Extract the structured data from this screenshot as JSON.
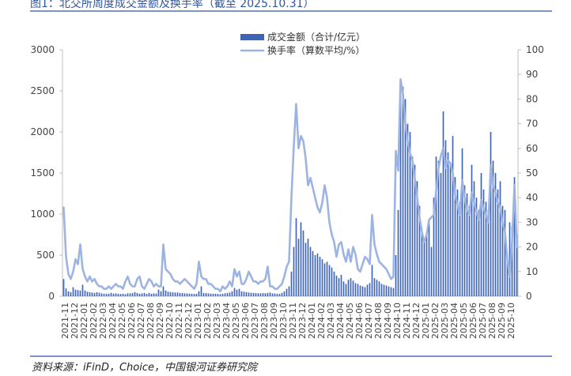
{
  "title": "图1：北交所周度成交金额及换手率（截至 2025.10.31）",
  "source": "资料来源：iFinD，Choice，中国银河证券研究院",
  "chart_data": {
    "type": "bar+line",
    "left_axis": {
      "ylim": [
        0,
        3000
      ],
      "ticks": [
        "0",
        "500",
        "1000",
        "1500",
        "2000",
        "2500",
        "3000"
      ]
    },
    "right_axis": {
      "ylim": [
        0,
        100
      ],
      "ticks": [
        "0",
        "10",
        "20",
        "30",
        "40",
        "50",
        "60",
        "70",
        "80",
        "90",
        "100"
      ]
    },
    "x_tick_labels": [
      "2021-11",
      "2021-12",
      "2022-01",
      "2022-02",
      "2022-03",
      "2022-04",
      "2022-05",
      "2022-06",
      "2022-07",
      "2022-08",
      "2022-09",
      "2022-10",
      "2022-11",
      "2022-12",
      "2023-01",
      "2023-02",
      "2023-03",
      "2023-04",
      "2023-05",
      "2023-06",
      "2023-07",
      "2023-08",
      "2023-09",
      "2023-10",
      "2023-11",
      "2023-12",
      "2024-01",
      "2024-02",
      "2024-03",
      "2024-04",
      "2024-05",
      "2024-06",
      "2024-07",
      "2024-08",
      "2024-09",
      "2024-10",
      "2024-11",
      "2024-12",
      "2025-01",
      "2025-02",
      "2025-03",
      "2025-04",
      "2025-05",
      "2025-06",
      "2025-07",
      "2025-08",
      "2025-09",
      "2025-10"
    ],
    "legend": [
      "成交金额（合计/亿元）",
      "换手率（算数平均/%）"
    ],
    "colors": {
      "bar": "#3f64b4",
      "line": "#9db4e3",
      "axis": "#bfbfbf"
    },
    "monthly": [
      {
        "month": "2021-11",
        "amount": [
          210,
          95,
          60,
          50
        ],
        "turnover": [
          36,
          16,
          9,
          7
        ]
      },
      {
        "month": "2021-12",
        "amount": [
          110,
          80,
          75,
          70
        ],
        "turnover": [
          10,
          15,
          13,
          21
        ]
      },
      {
        "month": "2022-01",
        "amount": [
          140,
          70,
          55,
          50
        ],
        "turnover": [
          11,
          8,
          6,
          8
        ]
      },
      {
        "month": "2022-02",
        "amount": [
          45,
          40,
          48,
          42
        ],
        "turnover": [
          6,
          7,
          5,
          4
        ]
      },
      {
        "month": "2022-03",
        "amount": [
          35,
          30,
          28,
          30
        ],
        "turnover": [
          4,
          3,
          3,
          4
        ]
      },
      {
        "month": "2022-04",
        "amount": [
          40,
          32,
          35,
          30
        ],
        "turnover": [
          3,
          4,
          5,
          4
        ]
      },
      {
        "month": "2022-05",
        "amount": [
          28,
          30,
          25,
          35
        ],
        "turnover": [
          4,
          3,
          6,
          8
        ]
      },
      {
        "month": "2022-06",
        "amount": [
          35,
          38,
          50,
          40
        ],
        "turnover": [
          5,
          4,
          4,
          7
        ]
      },
      {
        "month": "2022-07",
        "amount": [
          30,
          35,
          40,
          28
        ],
        "turnover": [
          8,
          4,
          3,
          5
        ]
      },
      {
        "month": "2022-08",
        "amount": [
          40,
          30,
          35,
          32
        ],
        "turnover": [
          7,
          6,
          4,
          5
        ]
      },
      {
        "month": "2022-09",
        "amount": [
          80,
          60,
          120,
          70
        ],
        "turnover": [
          4,
          4,
          21,
          11
        ]
      },
      {
        "month": "2022-10",
        "amount": [
          55,
          50,
          48,
          45
        ],
        "turnover": [
          10,
          9,
          7,
          6
        ]
      },
      {
        "month": "2022-11",
        "amount": [
          45,
          40,
          38,
          35
        ],
        "turnover": [
          6,
          5,
          6,
          7
        ]
      },
      {
        "month": "2022-12",
        "amount": [
          35,
          32,
          30,
          28
        ],
        "turnover": [
          6,
          5,
          4,
          3
        ]
      },
      {
        "month": "2023-01",
        "amount": [
          30,
          60,
          120,
          40
        ],
        "turnover": [
          5,
          14,
          8,
          7
        ]
      },
      {
        "month": "2023-02",
        "amount": [
          38,
          35,
          32,
          30
        ],
        "turnover": [
          7,
          5,
          5,
          4
        ]
      },
      {
        "month": "2023-03",
        "amount": [
          30,
          28,
          25,
          30
        ],
        "turnover": [
          3,
          3,
          2,
          4
        ]
      },
      {
        "month": "2023-04",
        "amount": [
          35,
          40,
          45,
          60
        ],
        "turnover": [
          3,
          4,
          6,
          4
        ]
      },
      {
        "month": "2023-05",
        "amount": [
          100,
          80,
          90,
          60
        ],
        "turnover": [
          11,
          8,
          10,
          5
        ]
      },
      {
        "month": "2023-06",
        "amount": [
          55,
          50,
          45,
          42
        ],
        "turnover": [
          5,
          7,
          10,
          8
        ]
      },
      {
        "month": "2023-07",
        "amount": [
          40,
          38,
          36,
          35
        ],
        "turnover": [
          6,
          6,
          5,
          6
        ]
      },
      {
        "month": "2023-08",
        "amount": [
          38,
          36,
          40,
          45
        ],
        "turnover": [
          6,
          7,
          12,
          4
        ]
      },
      {
        "month": "2023-09",
        "amount": [
          35,
          33,
          30,
          28
        ],
        "turnover": [
          4,
          3,
          3,
          4
        ]
      },
      {
        "month": "2023-10",
        "amount": [
          40,
          60,
          90,
          120
        ],
        "turnover": [
          5,
          8,
          12,
          14
        ]
      },
      {
        "month": "2023-11",
        "amount": [
          300,
          600,
          950,
          700
        ],
        "turnover": [
          40,
          61,
          78,
          60
        ]
      },
      {
        "month": "2023-12",
        "amount": [
          900,
          800,
          650,
          700
        ],
        "turnover": [
          65,
          63,
          56,
          45
        ]
      },
      {
        "month": "2024-01",
        "amount": [
          600,
          550,
          500,
          520
        ],
        "turnover": [
          48,
          44,
          40,
          36
        ]
      },
      {
        "month": "2024-02",
        "amount": [
          480,
          450,
          400,
          420
        ],
        "turnover": [
          34,
          38,
          45,
          40
        ]
      },
      {
        "month": "2024-03",
        "amount": [
          380,
          350,
          300,
          250
        ],
        "turnover": [
          30,
          25,
          22,
          16
        ]
      },
      {
        "month": "2024-04",
        "amount": [
          220,
          260,
          180,
          150
        ],
        "turnover": [
          21,
          22,
          17,
          14
        ]
      },
      {
        "month": "2024-05",
        "amount": [
          200,
          220,
          190,
          160
        ],
        "turnover": [
          19,
          14,
          20,
          17
        ]
      },
      {
        "month": "2024-06",
        "amount": [
          150,
          130,
          120,
          110
        ],
        "turnover": [
          11,
          10,
          13,
          16
        ]
      },
      {
        "month": "2024-07",
        "amount": [
          140,
          160,
          380,
          220
        ],
        "turnover": [
          15,
          13,
          33,
          21
        ]
      },
      {
        "month": "2024-08",
        "amount": [
          200,
          180,
          150,
          140
        ],
        "turnover": [
          17,
          14,
          13,
          12
        ]
      },
      {
        "month": "2024-09",
        "amount": [
          130,
          120,
          110,
          100
        ],
        "turnover": [
          11,
          9,
          7,
          8
        ]
      },
      {
        "month": "2024-10",
        "amount": [
          500,
          1050,
          2650,
          2550
        ],
        "turnover": [
          59,
          51,
          88,
          82
        ]
      },
      {
        "month": "2024-11",
        "amount": [
          2400,
          2100,
          2000,
          1700
        ],
        "turnover": [
          70,
          63,
          58,
          55
        ]
      },
      {
        "month": "2024-12",
        "amount": [
          1600,
          1400,
          1100,
          800
        ],
        "turnover": [
          48,
          40,
          32,
          26
        ]
      },
      {
        "month": "2025-01",
        "amount": [
          700,
          750,
          900,
          600
        ],
        "turnover": [
          22,
          25,
          31,
          32
        ]
      },
      {
        "month": "2025-02",
        "amount": [
          1200,
          1700,
          1650,
          1500
        ],
        "turnover": [
          33,
          43,
          52,
          57
        ]
      },
      {
        "month": "2025-03",
        "amount": [
          2250,
          1900,
          1750,
          1600
        ],
        "turnover": [
          60,
          52,
          55,
          54
        ]
      },
      {
        "month": "2025-04",
        "amount": [
          1950,
          1450,
          1300,
          1150
        ],
        "turnover": [
          50,
          41,
          37,
          33
        ]
      },
      {
        "month": "2025-05",
        "amount": [
          1800,
          1350,
          1250,
          1100
        ],
        "turnover": [
          47,
          40,
          35,
          33
        ]
      },
      {
        "month": "2025-06",
        "amount": [
          1600,
          1400,
          1200,
          1050
        ],
        "turnover": [
          42,
          38,
          34,
          31
        ]
      },
      {
        "month": "2025-07",
        "amount": [
          1500,
          1300,
          1150,
          1050
        ],
        "turnover": [
          39,
          36,
          33,
          30
        ]
      },
      {
        "month": "2025-08",
        "amount": [
          2000,
          1650,
          1500,
          1300
        ],
        "turnover": [
          53,
          45,
          42,
          38
        ]
      },
      {
        "month": "2025-09",
        "amount": [
          1400,
          1100,
          1050,
          500
        ],
        "turnover": [
          36,
          30,
          26,
          15
        ]
      },
      {
        "month": "2025-10",
        "amount": [
          900,
          850,
          1450,
          750
        ],
        "turnover": [
          8,
          22,
          45,
          20
        ]
      }
    ]
  }
}
